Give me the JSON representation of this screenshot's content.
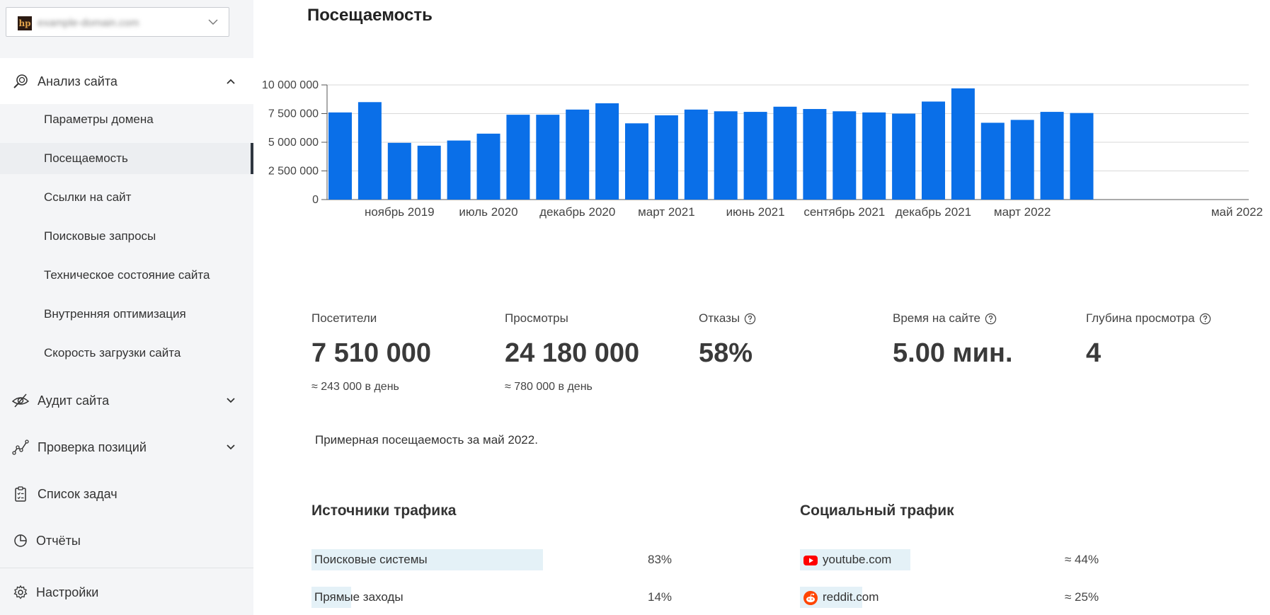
{
  "sidebar": {
    "site_select": {
      "favicon_text": "hp",
      "site_name": "example-domain.com"
    },
    "menu": [
      {
        "label": "Анализ сайта",
        "icon": "search-analysis-icon",
        "expanded": true
      },
      {
        "label": "Аудит сайта",
        "icon": "eye-audit-icon",
        "expanded": false
      },
      {
        "label": "Проверка позиций",
        "icon": "positions-graph-icon",
        "expanded": false
      },
      {
        "label": "Список задач",
        "icon": "clipboard-checklist-icon"
      },
      {
        "label": "Отчёты",
        "icon": "pie-chart-icon"
      },
      {
        "label": "Настройки",
        "icon": "gear-icon"
      }
    ],
    "submenu": [
      {
        "label": "Параметры домена"
      },
      {
        "label": "Посещаемость",
        "active": true
      },
      {
        "label": "Ссылки на сайт"
      },
      {
        "label": "Поисковые запросы"
      },
      {
        "label": "Техническое состояние сайта"
      },
      {
        "label": "Внутренняя оптимизация"
      },
      {
        "label": "Скорость загрузки сайта"
      }
    ]
  },
  "main": {
    "title": "Посещаемость",
    "stats": [
      {
        "label": "Посетители",
        "value": "7 510 000",
        "sub": "≈ 243 000 в день",
        "help": false
      },
      {
        "label": "Просмотры",
        "value": "24 180 000",
        "sub": "≈ 780 000 в день",
        "help": false
      },
      {
        "label": "Отказы",
        "value": "58%",
        "sub": "",
        "help": true
      },
      {
        "label": "Время на сайте",
        "value": "5.00 мин.",
        "sub": "",
        "help": true
      },
      {
        "label": "Глубина просмотра",
        "value": "4",
        "sub": "",
        "help": true
      }
    ],
    "note": "Примерная посещаемость за май 2022.",
    "traffic_sources": {
      "title": "Источники трафика",
      "items": [
        {
          "label": "Поисковые системы",
          "value": "83%",
          "share": 0.83
        },
        {
          "label": "Прямые заходы",
          "value": "14%",
          "share": 0.14
        }
      ]
    },
    "social_traffic": {
      "title": "Социальный трафик",
      "items": [
        {
          "label": "youtube.com",
          "value": "≈ 44%",
          "icon": "youtube-icon",
          "share": 0.44
        },
        {
          "label": "reddit.com",
          "value": "≈ 25%",
          "icon": "reddit-icon",
          "share": 0.25
        }
      ]
    }
  },
  "colors": {
    "bar": "#0a6fe8",
    "grid": "#d9d9d9",
    "axis": "#555555",
    "active_marker": "#2f3640"
  },
  "chart_data": {
    "type": "bar",
    "y_tick_labels": [
      "0",
      "2 500 000",
      "5 000 000",
      "7 500 000",
      "10 000 000"
    ],
    "x_tick_labels": [
      "ноябрь 2019",
      "июль 2020",
      "декабрь 2020",
      "март 2021",
      "июнь 2021",
      "сентябрь 2021",
      "декабрь 2021",
      "март 2022",
      "май 2022"
    ],
    "x_tick_bar_index": [
      2.5,
      5.5,
      8.5,
      11.5,
      14.5,
      17.5,
      20.5,
      23.5,
      25.5
    ],
    "ylim": [
      0,
      10000000
    ],
    "values": [
      7600000,
      8500000,
      4950000,
      4700000,
      5150000,
      5750000,
      7400000,
      7400000,
      7850000,
      8400000,
      6650000,
      7350000,
      7850000,
      7700000,
      7650000,
      8100000,
      7900000,
      7700000,
      7600000,
      7500000,
      8550000,
      9700000,
      6700000,
      6950000,
      7650000,
      7550000
    ],
    "grid": true,
    "legend": false
  }
}
